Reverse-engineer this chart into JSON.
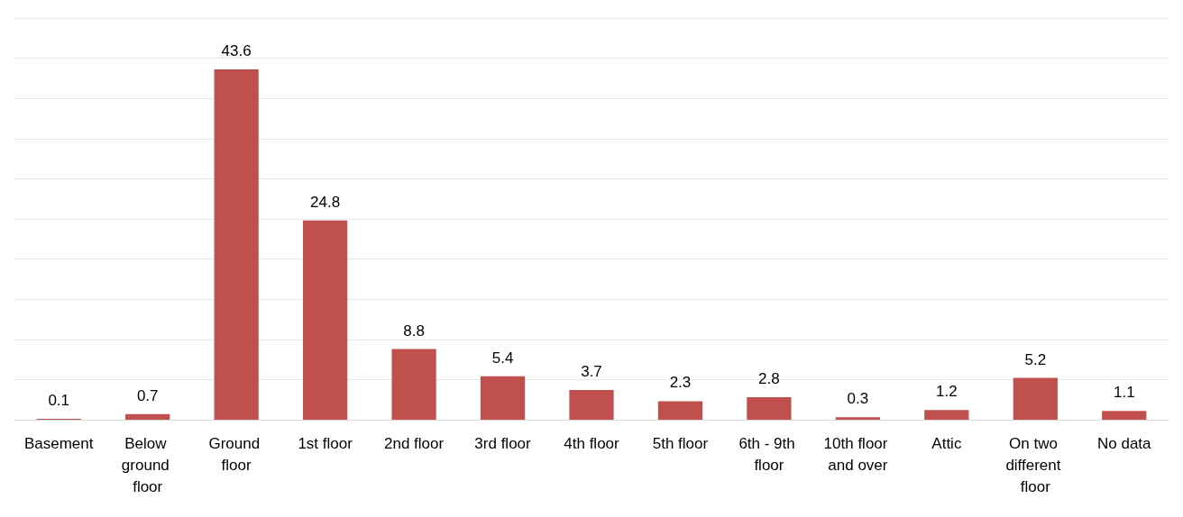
{
  "chart_data": {
    "type": "bar",
    "categories": [
      "Basement",
      "Below ground floor",
      "Ground floor",
      "1st floor",
      "2nd floor",
      "3rd floor",
      "4th floor",
      "5th floor",
      "6th - 9th floor",
      "10th floor and over",
      "Attic",
      "On two different floor",
      "No data"
    ],
    "values": [
      0.1,
      0.7,
      43.6,
      24.8,
      8.8,
      5.4,
      3.7,
      2.3,
      2.8,
      0.3,
      1.2,
      5.2,
      1.1
    ],
    "color": "#c0504d",
    "ylim": [
      0,
      50
    ],
    "yticks": [
      {
        "value": 0,
        "label": null
      },
      {
        "value": 5,
        "label": null
      },
      {
        "value": 10,
        "label": null
      },
      {
        "value": 15,
        "label": null
      },
      {
        "value": 20,
        "label": null
      },
      {
        "value": 25,
        "label": null
      },
      {
        "value": 30,
        "label": null
      },
      {
        "value": 35,
        "label": null
      },
      {
        "value": 40,
        "label": null
      },
      {
        "value": 45,
        "label": null
      },
      {
        "value": 50,
        "label": null
      }
    ],
    "tick_labels": "x",
    "grid": "y",
    "data_labels": true
  }
}
